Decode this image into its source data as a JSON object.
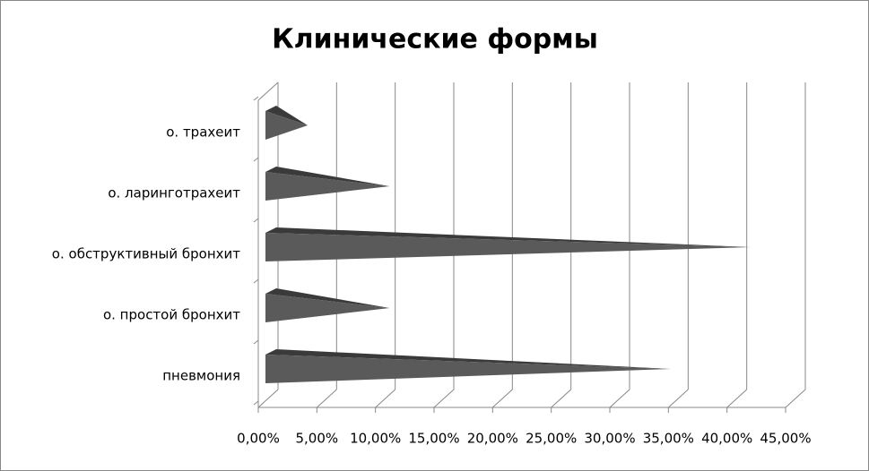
{
  "chart_data": {
    "type": "cone-bar",
    "title": "Клинические формы",
    "categories": [
      "о. трахеит",
      "о. ларинготрахеит",
      "о. обструктивный бронхит",
      "о. простой бронхит",
      "пневмония"
    ],
    "values": [
      3.6,
      10.6,
      41.4,
      10.6,
      34.6
    ],
    "color": "#5a5a5a",
    "xlim": [
      0,
      45
    ],
    "xticks": [
      {
        "value": 0,
        "label": "0,00%"
      },
      {
        "value": 5,
        "label": "5,00%"
      },
      {
        "value": 10,
        "label": "10,00%"
      },
      {
        "value": 15,
        "label": "15,00%"
      },
      {
        "value": 20,
        "label": "20,00%"
      },
      {
        "value": 25,
        "label": "25,00%"
      },
      {
        "value": 30,
        "label": "30,00%"
      },
      {
        "value": 35,
        "label": "35,00%"
      },
      {
        "value": 40,
        "label": "40,00%"
      },
      {
        "value": 45,
        "label": "45,00%"
      }
    ],
    "grid": true
  }
}
